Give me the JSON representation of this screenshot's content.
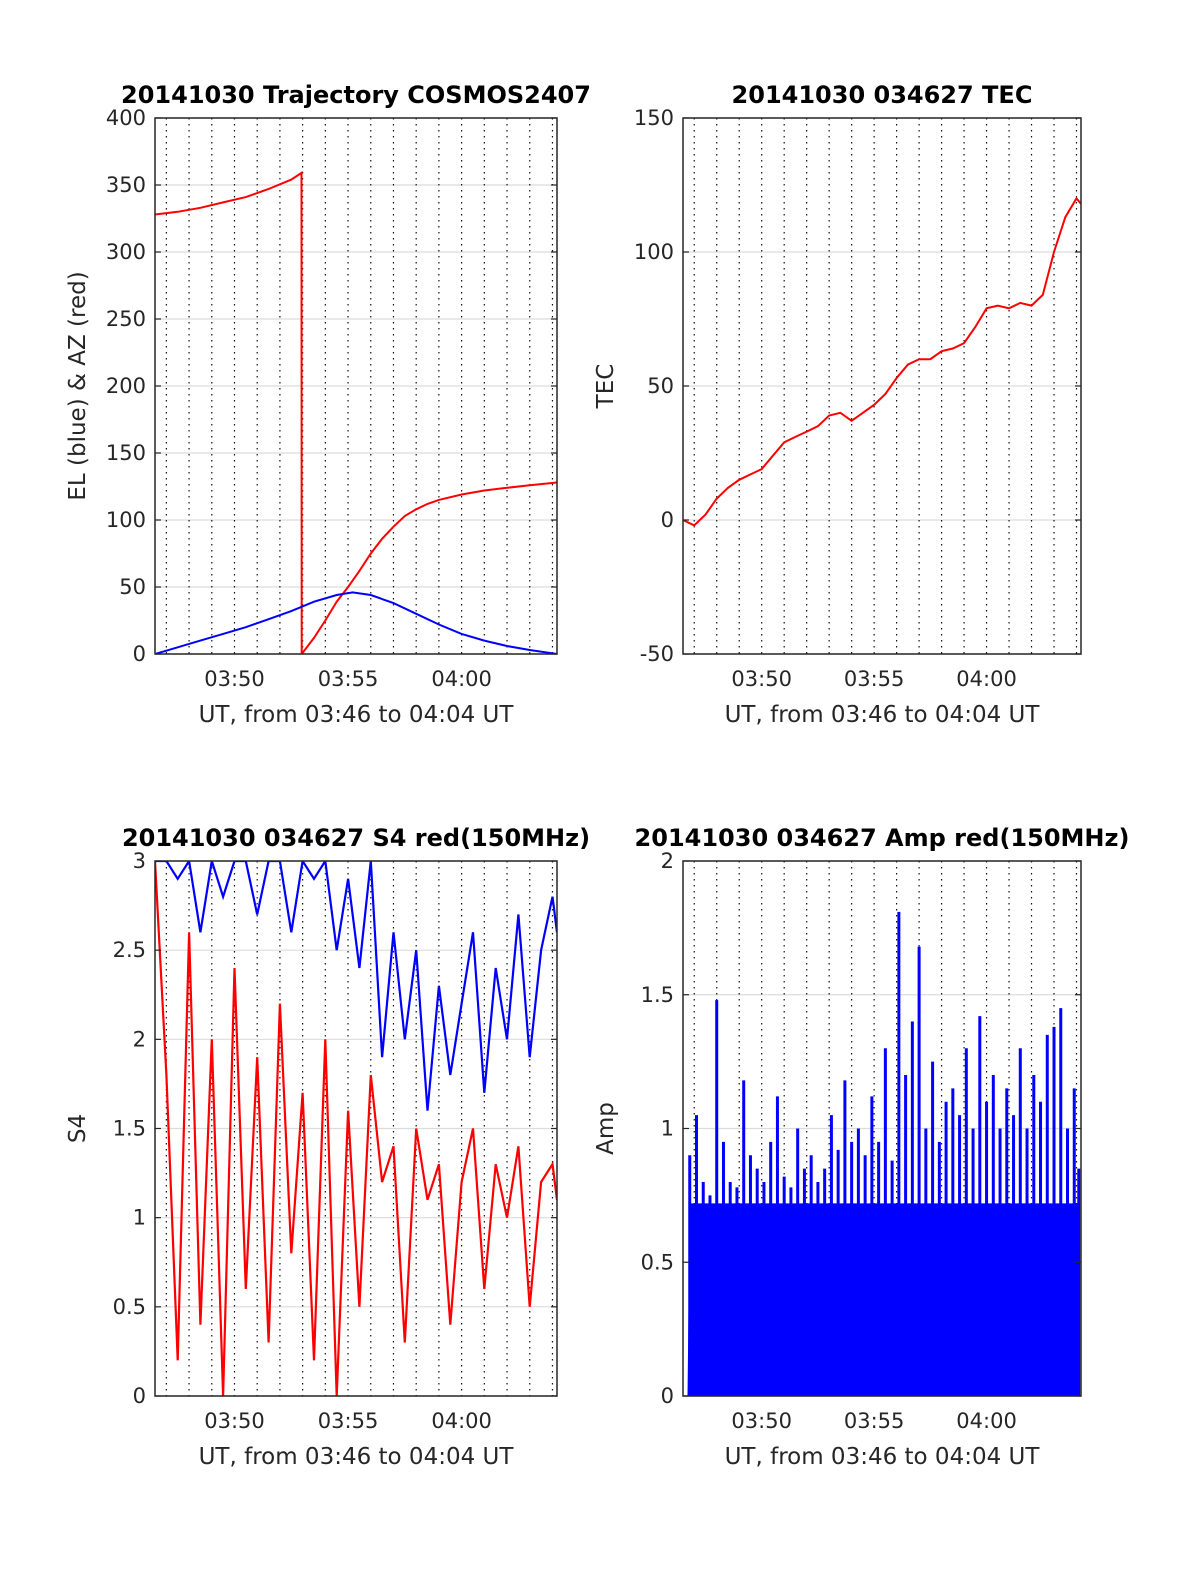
{
  "chart_data": [
    {
      "type": "line",
      "title": "20141030 Trajectory COSMOS2407",
      "xlabel": "UT, from 03:46 to 04:04 UT",
      "ylabel": "EL (blue) & AZ (red)",
      "xlim": [
        46.5,
        64.2
      ],
      "ylim": [
        0,
        400
      ],
      "yticks": [
        0,
        50,
        100,
        150,
        200,
        250,
        300,
        350,
        400
      ],
      "xticks": [
        {
          "v": 50,
          "label": "03:50"
        },
        {
          "v": 55,
          "label": "03:55"
        },
        {
          "v": 60,
          "label": "04:00"
        }
      ],
      "grid": true,
      "colors": {
        "red": "#ff0000",
        "blue": "#0000ff"
      },
      "series": [
        {
          "color": "red",
          "x": [
            46.5,
            47.5,
            48.5,
            49.5,
            50.5,
            51.5,
            52.5,
            52.95,
            52.96,
            53.5,
            54.0,
            54.5,
            55.0,
            55.5,
            56.0,
            56.5,
            57.0,
            57.5,
            58.0,
            58.5,
            59.0,
            60.0,
            61.0,
            62.0,
            63.0,
            64.2
          ],
          "y": [
            328,
            330,
            333,
            337,
            341,
            347,
            354,
            359,
            0,
            12,
            25,
            39,
            50,
            62,
            75,
            86,
            95,
            103,
            108,
            112,
            115,
            119,
            122,
            124,
            126,
            128
          ]
        },
        {
          "color": "blue",
          "x": [
            46.5,
            47.5,
            48.5,
            49.5,
            50.5,
            51.5,
            52.5,
            53.5,
            54.5,
            55.2,
            56.0,
            57.0,
            58.0,
            59.0,
            60.0,
            61.0,
            62.0,
            63.0,
            64.2
          ],
          "y": [
            0,
            5,
            10,
            15,
            20,
            26,
            32,
            39,
            44,
            46,
            44,
            38,
            30,
            22,
            15,
            10,
            6,
            3,
            0
          ]
        }
      ]
    },
    {
      "type": "line",
      "title": "20141030 034627 TEC",
      "xlabel": "UT, from 03:46 to 04:04 UT",
      "ylabel": "TEC",
      "xlim": [
        46.5,
        64.2
      ],
      "ylim": [
        -50,
        150
      ],
      "yticks": [
        -50,
        0,
        50,
        100,
        150
      ],
      "xticks": [
        {
          "v": 50,
          "label": "03:50"
        },
        {
          "v": 55,
          "label": "03:55"
        },
        {
          "v": 60,
          "label": "04:00"
        }
      ],
      "grid": true,
      "series": [
        {
          "color": "red",
          "x": [
            46.5,
            47.0,
            47.5,
            48.0,
            48.5,
            49.0,
            49.5,
            50.0,
            50.5,
            51.0,
            51.5,
            52.0,
            52.5,
            53.0,
            53.5,
            54.0,
            54.5,
            55.0,
            55.5,
            56.0,
            56.5,
            57.0,
            57.5,
            58.0,
            58.5,
            59.0,
            59.5,
            60.0,
            60.5,
            61.0,
            61.5,
            62.0,
            62.5,
            63.0,
            63.5,
            64.0,
            64.2
          ],
          "y": [
            0,
            -2,
            2,
            8,
            12,
            15,
            17,
            19,
            24,
            29,
            31,
            33,
            35,
            39,
            40,
            37,
            40,
            43,
            47,
            53,
            58,
            60,
            60,
            63,
            64,
            66,
            72,
            79,
            80,
            79,
            81,
            80,
            84,
            100,
            113,
            120,
            118
          ]
        }
      ]
    },
    {
      "type": "line",
      "title": "20141030 034627 S4 red(150MHz)",
      "xlabel": "UT, from 03:46 to 04:04 UT",
      "ylabel": "S4",
      "xlim": [
        46.5,
        64.2
      ],
      "ylim": [
        0,
        3
      ],
      "yticks": [
        0,
        0.5,
        1,
        1.5,
        2,
        2.5,
        3
      ],
      "ytick_labels": [
        "0",
        "0.5",
        "1",
        "1.5",
        "2",
        "2.5",
        "3"
      ],
      "xticks": [
        {
          "v": 50,
          "label": "03:50"
        },
        {
          "v": 55,
          "label": "03:55"
        },
        {
          "v": 60,
          "label": "04:00"
        }
      ],
      "grid": true,
      "series": [
        {
          "color": "red",
          "x": [
            46.5,
            47.0,
            47.5,
            48.0,
            48.5,
            49.0,
            49.5,
            50.0,
            50.5,
            51.0,
            51.5,
            52.0,
            52.5,
            53.0,
            53.5,
            54.0,
            54.5,
            55.0,
            55.5,
            56.0,
            56.5,
            57.0,
            57.5,
            58.0,
            58.5,
            59.0,
            59.5,
            60.0,
            60.5,
            61.0,
            61.5,
            62.0,
            62.5,
            63.0,
            63.5,
            64.0,
            64.2
          ],
          "y": [
            3.0,
            1.8,
            0.2,
            2.6,
            0.4,
            2.0,
            0.0,
            2.4,
            0.6,
            1.9,
            0.3,
            2.2,
            0.8,
            1.7,
            0.2,
            2.0,
            0.0,
            1.6,
            0.5,
            1.8,
            1.2,
            1.4,
            0.3,
            1.5,
            1.1,
            1.3,
            0.4,
            1.2,
            1.5,
            0.6,
            1.3,
            1.0,
            1.4,
            0.5,
            1.2,
            1.3,
            1.1
          ]
        },
        {
          "color": "blue",
          "x": [
            46.5,
            47.0,
            47.5,
            48.0,
            48.5,
            49.0,
            49.5,
            50.0,
            50.5,
            51.0,
            51.5,
            52.0,
            52.5,
            53.0,
            53.5,
            54.0,
            54.5,
            55.0,
            55.5,
            56.0,
            56.5,
            57.0,
            57.5,
            58.0,
            58.5,
            59.0,
            59.5,
            60.0,
            60.5,
            61.0,
            61.5,
            62.0,
            62.5,
            63.0,
            63.5,
            64.0,
            64.2
          ],
          "y": [
            3.0,
            3.0,
            2.9,
            3.0,
            2.6,
            3.0,
            2.8,
            3.0,
            3.0,
            2.7,
            3.0,
            3.0,
            2.6,
            3.0,
            2.9,
            3.0,
            2.5,
            2.9,
            2.4,
            3.0,
            1.9,
            2.6,
            2.0,
            2.5,
            1.6,
            2.3,
            1.8,
            2.2,
            2.6,
            1.7,
            2.4,
            2.0,
            2.7,
            1.9,
            2.5,
            2.8,
            2.6
          ]
        }
      ]
    },
    {
      "type": "bar",
      "title": "20141030 034627 Amp red(150MHz)",
      "xlabel": "UT, from 03:46 to 04:04 UT",
      "ylabel": "Amp",
      "xlim": [
        46.5,
        64.2
      ],
      "ylim": [
        0,
        2
      ],
      "yticks": [
        0,
        0.5,
        1,
        1.5,
        2
      ],
      "ytick_labels": [
        "0",
        "0.5",
        "1",
        "1.5",
        "2"
      ],
      "xticks": [
        {
          "v": 50,
          "label": "03:50"
        },
        {
          "v": 55,
          "label": "03:55"
        },
        {
          "v": 60,
          "label": "04:00"
        }
      ],
      "grid": true,
      "series": [
        {
          "color": "blue",
          "x": [
            46.8,
            47.1,
            47.4,
            47.7,
            48.0,
            48.3,
            48.6,
            48.9,
            49.2,
            49.5,
            49.8,
            50.1,
            50.4,
            50.7,
            51.0,
            51.3,
            51.6,
            51.9,
            52.2,
            52.5,
            52.8,
            53.1,
            53.4,
            53.7,
            54.0,
            54.3,
            54.6,
            54.9,
            55.2,
            55.5,
            55.8,
            56.1,
            56.4,
            56.7,
            57.0,
            57.3,
            57.6,
            57.9,
            58.2,
            58.5,
            58.8,
            59.1,
            59.4,
            59.7,
            60.0,
            60.3,
            60.6,
            60.9,
            61.2,
            61.5,
            61.8,
            62.1,
            62.4,
            62.7,
            63.0,
            63.3,
            63.6,
            63.9,
            64.1
          ],
          "y": [
            0.9,
            1.05,
            0.8,
            0.75,
            1.48,
            0.95,
            0.8,
            0.78,
            1.18,
            0.9,
            0.85,
            0.8,
            0.95,
            1.12,
            0.82,
            0.78,
            1.0,
            0.85,
            0.9,
            0.8,
            0.85,
            1.05,
            0.92,
            1.18,
            0.95,
            1.0,
            0.9,
            1.12,
            0.95,
            1.3,
            0.88,
            1.81,
            1.2,
            1.4,
            1.68,
            1.0,
            1.25,
            0.95,
            1.1,
            1.15,
            1.05,
            1.3,
            1.0,
            1.42,
            1.1,
            1.2,
            1.0,
            1.15,
            1.05,
            1.3,
            1.0,
            1.2,
            1.1,
            1.35,
            1.38,
            1.45,
            1.0,
            1.15,
            0.85
          ]
        }
      ]
    }
  ]
}
